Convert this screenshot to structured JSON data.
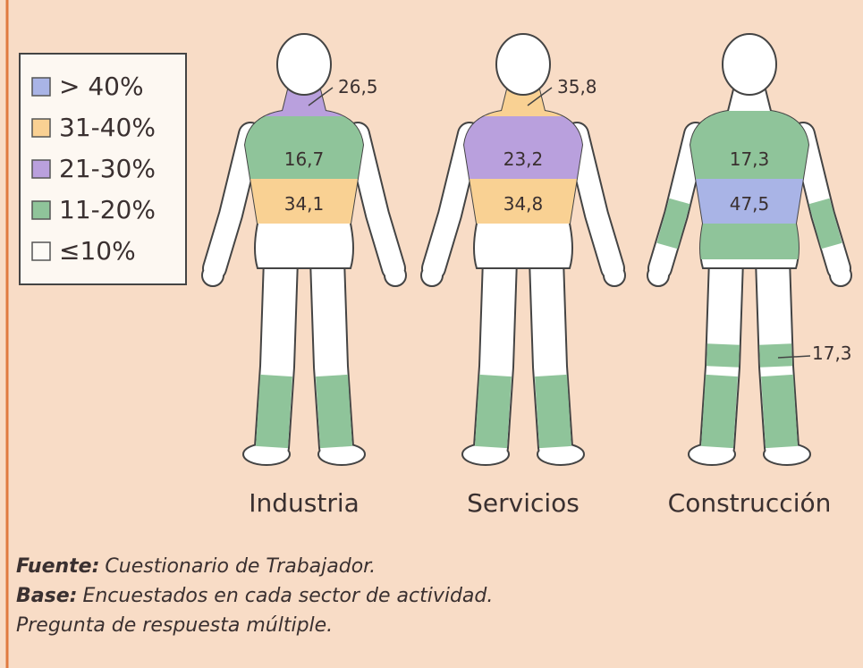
{
  "legend": [
    {
      "label": "> 40%",
      "color": "#a9b4e6"
    },
    {
      "label": "31-40%",
      "color": "#f9d193"
    },
    {
      "label": "21-30%",
      "color": "#b9a0dd"
    },
    {
      "label": "11-20%",
      "color": "#8fc49a"
    },
    {
      "label": "≤10%",
      "color": "#fdfbf6"
    }
  ],
  "figures": [
    {
      "name": "Industria",
      "labels": [
        "26,5",
        "16,7",
        "34,1"
      ]
    },
    {
      "name": "Servicios",
      "labels": [
        "35,8",
        "23,2",
        "34,8"
      ]
    },
    {
      "name": "Construcción",
      "labels": [
        "17,3",
        "47,5",
        "17,3"
      ]
    }
  ],
  "notes": [
    {
      "label": "Fuente:",
      "text": "Cuestionario de Trabajador."
    },
    {
      "label": "Base:",
      "text": "Encuestados en cada sector de actividad."
    },
    {
      "label": "",
      "text": "Pregunta de respuesta múltiple."
    }
  ]
}
